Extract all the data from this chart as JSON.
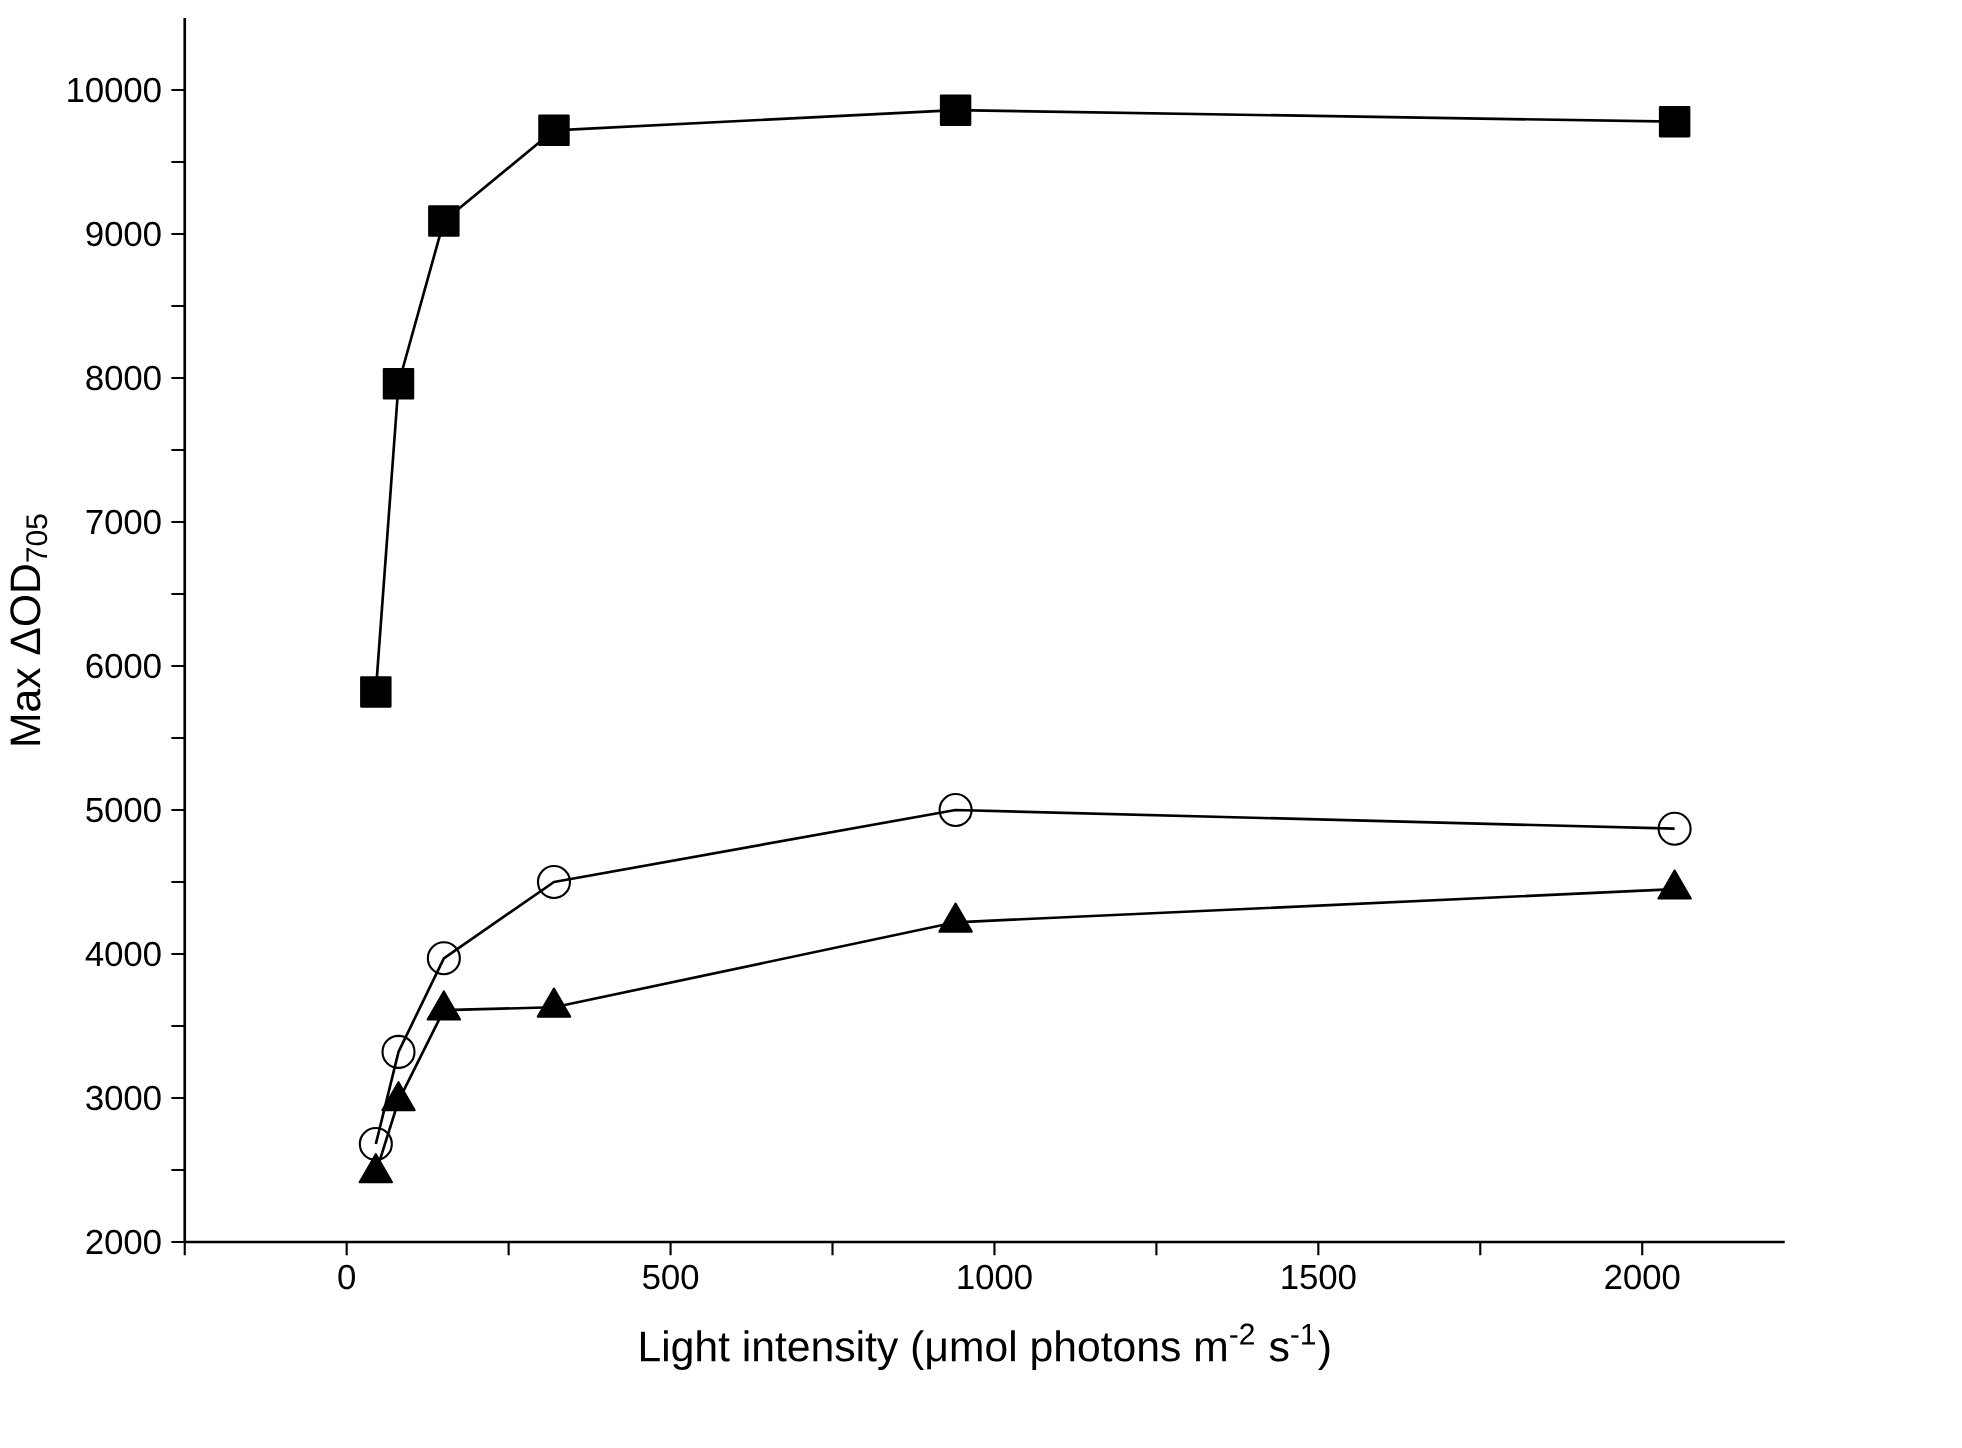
{
  "chart_data": {
    "type": "line",
    "xlabel": "Light intensity (μmol photons m$^{-2}$ s$^{-1}$)",
    "ylabel": "Max ΔOD$_{705}$",
    "xlim": [
      -250,
      2220
    ],
    "ylim": [
      2000,
      10500
    ],
    "xticks": [
      {
        "value": -250,
        "label": null
      },
      0,
      {
        "value": 250,
        "label": null
      },
      500,
      {
        "value": 750,
        "label": null
      },
      1000,
      {
        "value": 1250,
        "label": null
      },
      1500,
      {
        "value": 1750,
        "label": null
      },
      2000
    ],
    "yticks": [
      2000,
      {
        "value": 2500,
        "label": null
      },
      3000,
      {
        "value": 3500,
        "label": null
      },
      4000,
      {
        "value": 4500,
        "label": null
      },
      5000,
      {
        "value": 5500,
        "label": null
      },
      6000,
      {
        "value": 6500,
        "label": null
      },
      7000,
      {
        "value": 7500,
        "label": null
      },
      8000,
      {
        "value": 8500,
        "label": null
      },
      9000,
      {
        "value": 9500,
        "label": null
      },
      10000
    ],
    "grid": false,
    "line_style": "solid",
    "series": [
      {
        "color": "#000000",
        "marker": "square",
        "x": [
          45,
          80,
          150,
          320,
          940,
          2050
        ],
        "values": [
          5820,
          7960,
          9090,
          9720,
          9860,
          9780
        ]
      },
      {
        "color": "#000000",
        "marker": "circle",
        "x": [
          45,
          80,
          150,
          320,
          940,
          2050
        ],
        "values": [
          2680,
          3320,
          3970,
          4500,
          5000,
          4870
        ]
      },
      {
        "color": "#000000",
        "marker": "triangle",
        "x": [
          45,
          80,
          150,
          320,
          940,
          2050
        ],
        "values": [
          2480,
          2980,
          3610,
          3630,
          4220,
          4450
        ]
      }
    ]
  }
}
